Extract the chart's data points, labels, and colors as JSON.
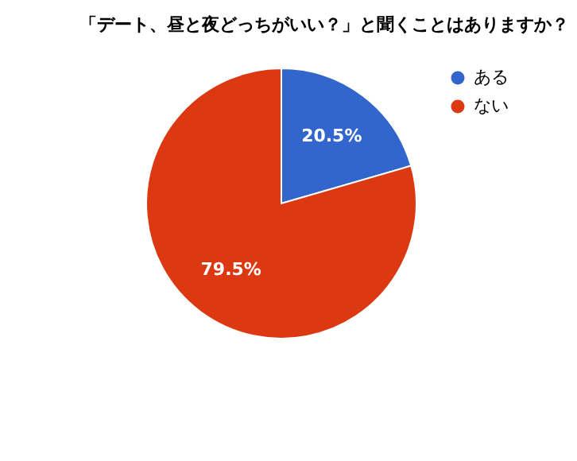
{
  "chart_data": {
    "type": "pie",
    "title": "「デート、昼と夜どっちがいい？」と聞くことはありますか？",
    "categories": [
      "ある",
      "ない"
    ],
    "values": [
      20.5,
      79.5
    ],
    "colors": [
      "#3366cc",
      "#dc3912"
    ],
    "value_labels": [
      "20.5%",
      "79.5%"
    ],
    "legend": "top right"
  }
}
